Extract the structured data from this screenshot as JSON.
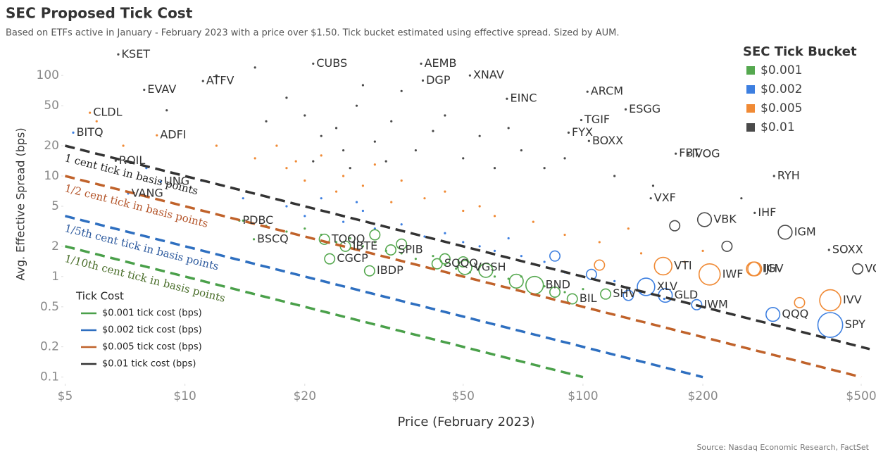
{
  "chart_data": {
    "type": "scatter",
    "title": "SEC Proposed Tick Cost",
    "subtitle": "Based on ETFs active in January - February 2023 with a price over $1.50. Tick bucket estimated using effective spread. Sized by AUM.",
    "x_label": "Price (February 2023)",
    "y_label": "Avg. Effective Spread (bps)",
    "source": "Source: Nasdaq Economic Research, FactSet",
    "x_scale": "log",
    "y_scale": "log",
    "xlim": [
      4.95,
      525
    ],
    "ylim": [
      0.086,
      168
    ],
    "xticks": [
      {
        "value": 5,
        "label": "$5"
      },
      {
        "value": 10,
        "label": "$10"
      },
      {
        "value": 20,
        "label": "$20"
      },
      {
        "value": 50,
        "label": "$50"
      },
      {
        "value": 100,
        "label": "$100"
      },
      {
        "value": 200,
        "label": "$200"
      },
      {
        "value": 500,
        "label": "$500"
      }
    ],
    "yticks": [
      0.1,
      0.2,
      0.5,
      1,
      2,
      5,
      10,
      20,
      50,
      100
    ],
    "grid": false,
    "legend_title": "SEC Tick Bucket",
    "legend_position": "top-right",
    "series": [
      {
        "name": "$0.01",
        "color": "#4a4a4a",
        "x": [
          6.8,
          7.9,
          6.7,
          11.1,
          21.0,
          39.2,
          39.6,
          52,
          64.4,
          102.6,
          99,
          128,
          92,
          103.5,
          171,
          184,
          148,
          202,
          302,
          270,
          322,
          415,
          490,
          15,
          18,
          20,
          22,
          24,
          25,
          27,
          30,
          33,
          35,
          38,
          42,
          45,
          50,
          55,
          60,
          65,
          70,
          80,
          90,
          120,
          150,
          250,
          170,
          230,
          12,
          9,
          28,
          16,
          21,
          26,
          32
        ],
        "values": [
          162,
          72,
          14.2,
          88,
          131,
          131,
          89,
          100,
          58.7,
          69,
          36,
          46,
          27,
          22.3,
          16.7,
          16.5,
          6.0,
          3.68,
          10,
          4.3,
          2.76,
          1.84,
          1.19,
          120,
          60,
          40,
          25,
          30,
          18,
          50,
          22,
          35,
          70,
          18,
          28,
          40,
          15,
          25,
          12,
          30,
          18,
          12,
          15,
          10,
          8,
          6,
          3.2,
          2.0,
          100,
          45,
          80,
          35,
          14,
          12,
          14
        ],
        "sizes": [
          1,
          1,
          1,
          1,
          1,
          1,
          1,
          1,
          1,
          1,
          1,
          1,
          1,
          1,
          1,
          1,
          1,
          3,
          1,
          1,
          3,
          1,
          2,
          1,
          1,
          1,
          1,
          1,
          1,
          1,
          1,
          1,
          1,
          1,
          1,
          1,
          1,
          1,
          1,
          1,
          1,
          1,
          1,
          1,
          1,
          1,
          2,
          2,
          1,
          1,
          1,
          1,
          1,
          1,
          1
        ],
        "labels": [
          "KSET",
          "EVAV",
          "ROIL",
          "ATFV",
          "CUBS",
          "AEMB",
          "DGP",
          "XNAV",
          "EINC",
          "ARCM",
          "TGIF",
          "ESGG",
          "FYX",
          "BOXX",
          "FBT",
          "IVOG",
          "VXF",
          "VBK",
          "RYH",
          "IHF",
          "IGM",
          "SOXX",
          "VOO",
          null,
          null,
          null,
          null,
          null,
          null,
          null,
          null,
          null,
          null,
          null,
          null,
          null,
          null,
          null,
          null,
          null,
          null,
          null,
          null,
          null,
          null,
          null,
          null,
          null,
          null,
          null,
          null,
          null,
          null,
          null,
          null
        ]
      },
      {
        "name": "$0.005",
        "color": "#f08a35",
        "x": [
          5.77,
          8.5,
          270,
          418,
          268,
          208,
          159,
          6,
          7,
          12,
          15,
          18,
          20,
          22,
          25,
          28,
          30,
          35,
          40,
          45,
          55,
          60,
          75,
          90,
          110,
          140,
          180,
          200,
          130,
          17,
          19,
          24,
          33,
          50,
          110,
          350
        ],
        "values": [
          42.6,
          25.4,
          1.19,
          0.58,
          1.19,
          1.05,
          1.27,
          35,
          20,
          20,
          15,
          12,
          9,
          16,
          10,
          8,
          13,
          9,
          6,
          7,
          5,
          4,
          3.5,
          2.6,
          2.2,
          1.7,
          1.4,
          1.8,
          3,
          20,
          14,
          7,
          5.5,
          4.5,
          1.3,
          0.55
        ],
        "sizes": [
          1,
          1,
          3,
          5,
          3,
          5,
          4,
          1,
          1,
          1,
          1,
          1,
          1,
          1,
          1,
          1,
          1,
          1,
          1,
          1,
          1,
          1,
          1,
          1,
          1,
          1,
          1,
          1,
          1,
          1,
          1,
          1,
          1,
          1,
          2,
          2
        ],
        "labels": [
          "CLDL",
          "ADFI",
          "IGV",
          "IVV",
          "IJH",
          "IWF",
          "VTI",
          null,
          null,
          null,
          null,
          null,
          null,
          null,
          null,
          null,
          null,
          null,
          null,
          null,
          null,
          null,
          null,
          null,
          null,
          null,
          null,
          null,
          null,
          null,
          null,
          null,
          null,
          null,
          null,
          null
        ]
      },
      {
        "name": "$0.002",
        "color": "#3d7fe0",
        "x": [
          5.24,
          7.2,
          8.7,
          193,
          300,
          418,
          161,
          144,
          8,
          11,
          14,
          18,
          20,
          22,
          25,
          28,
          30,
          35,
          40,
          45,
          55,
          60,
          70,
          80,
          90,
          100,
          120,
          140,
          160,
          27,
          50,
          65,
          85,
          105,
          130
        ],
        "values": [
          27,
          6.7,
          8.8,
          0.525,
          0.42,
          0.33,
          0.65,
          0.79,
          12,
          9,
          6,
          5,
          4,
          6,
          3.5,
          4.5,
          3,
          3.3,
          2.5,
          2.7,
          2,
          1.8,
          1.6,
          1.4,
          1.1,
          1,
          0.9,
          0.7,
          0.6,
          5.5,
          2.2,
          2.4,
          1.6,
          1.05,
          0.65
        ],
        "sizes": [
          1,
          1,
          1,
          2,
          3,
          6,
          3,
          4,
          1,
          1,
          1,
          1,
          1,
          1,
          1,
          1,
          1,
          1,
          1,
          1,
          1,
          1,
          1,
          1,
          1,
          1,
          1,
          1,
          1,
          1,
          1,
          1,
          2,
          2,
          2
        ],
        "labels": [
          "BITQ",
          "VANG",
          "UNG",
          "IWM",
          "QQQ",
          "SPY",
          "GLD",
          "XLV",
          null,
          null,
          null,
          null,
          null,
          null,
          null,
          null,
          null,
          null,
          null,
          null,
          null,
          null,
          null,
          null,
          null,
          null,
          null,
          null,
          null,
          null,
          null,
          null,
          null,
          null,
          null
        ]
      },
      {
        "name": "$0.001",
        "color": "#55a84f",
        "x": [
          13.7,
          14.9,
          114,
          94,
          75.6,
          50.5,
          43,
          32.9,
          25.3,
          29.1,
          22.4,
          23.1,
          14,
          16,
          18,
          20,
          22,
          24,
          26,
          28,
          30,
          32,
          35,
          38,
          42,
          45,
          48,
          52,
          55,
          60,
          65,
          70,
          80,
          90,
          100,
          35,
          50,
          57,
          68,
          85,
          45,
          30
        ],
        "values": [
          3.6,
          2.35,
          0.67,
          0.6,
          0.82,
          1.23,
          1.34,
          1.84,
          2.0,
          1.14,
          2.35,
          1.5,
          3.6,
          3.2,
          2.8,
          3,
          2.6,
          2.2,
          2.4,
          2,
          2.2,
          1.8,
          1.7,
          1.5,
          1.6,
          1.3,
          1.2,
          1.1,
          1.25,
          1.0,
          0.95,
          1,
          0.8,
          0.7,
          0.75,
          2.1,
          1.4,
          1.15,
          0.9,
          0.7,
          1.5,
          2.6
        ],
        "sizes": [
          1,
          1,
          2,
          2,
          4,
          3,
          2,
          2,
          2,
          2,
          2,
          2,
          1,
          1,
          1,
          1,
          1,
          1,
          1,
          1,
          1,
          1,
          1,
          1,
          1,
          1,
          1,
          1,
          1,
          1,
          1,
          1,
          1,
          1,
          1,
          2,
          2,
          3,
          3,
          2,
          2,
          2
        ],
        "labels": [
          "PDBC",
          "BSCQ",
          "SHV",
          "BIL",
          "BND",
          "VGSH",
          "SQQQ",
          "SPIB",
          "IBTE",
          "IBDP",
          "TQQQ",
          "CGCP",
          null,
          null,
          null,
          null,
          null,
          null,
          null,
          null,
          null,
          null,
          null,
          null,
          null,
          null,
          null,
          null,
          null,
          null,
          null,
          null,
          null,
          null,
          null,
          null,
          null,
          null,
          null,
          null,
          null,
          null
        ]
      }
    ],
    "reference_legend_title": "Tick Cost",
    "reference_lines": [
      {
        "name": "$0.001 tick cost (bps)",
        "color": "#4aa04a",
        "text_color": "#4a6e2a",
        "annotation": "1/10th cent tick in basis points",
        "x": [
          5,
          100
        ],
        "values": [
          2,
          0.1
        ]
      },
      {
        "name": "$0.002 tick cost (bps)",
        "color": "#2e6fc0",
        "text_color": "#2d5a9e",
        "annotation": "1/5th cent tick in basis points",
        "x": [
          5,
          200
        ],
        "values": [
          4,
          0.1
        ]
      },
      {
        "name": "$0.005 tick cost (bps)",
        "color": "#c0622a",
        "text_color": "#b4552a",
        "annotation": "1/2 cent tick in basis points",
        "x": [
          5,
          500
        ],
        "values": [
          10,
          0.1
        ]
      },
      {
        "name": "$0.01 tick cost (bps)",
        "color": "#333333",
        "text_color": "#222222",
        "annotation": "1 cent tick in basis points",
        "x": [
          5,
          525
        ],
        "values": [
          20,
          0.19
        ]
      }
    ]
  }
}
